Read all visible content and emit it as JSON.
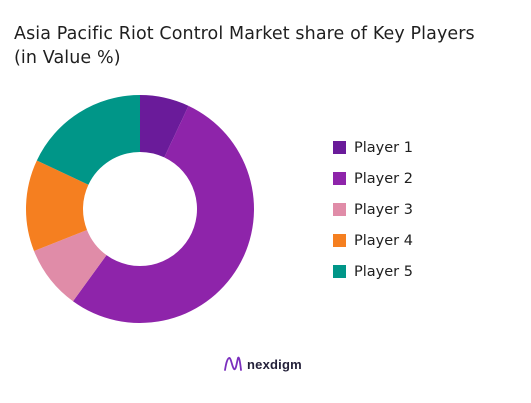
{
  "chart_data": {
    "type": "pie",
    "variant": "donut",
    "title_lines": [
      "Asia Pacific Riot Control Market share of Key Players",
      "(in Value %)"
    ],
    "series": [
      {
        "name": "Player 1",
        "value": 7,
        "color": "#6A1B9A"
      },
      {
        "name": "Player 2",
        "value": 53,
        "color": "#8E24AA"
      },
      {
        "name": "Player 3",
        "value": 9,
        "color": "#E08CA8"
      },
      {
        "name": "Player 4",
        "value": 13,
        "color": "#F57F20"
      },
      {
        "name": "Player 5",
        "value": 18,
        "color": "#009688"
      }
    ],
    "legend_position": "right"
  },
  "brand": {
    "name": "nexdigm",
    "icon": "nexdigm-logo-icon"
  }
}
